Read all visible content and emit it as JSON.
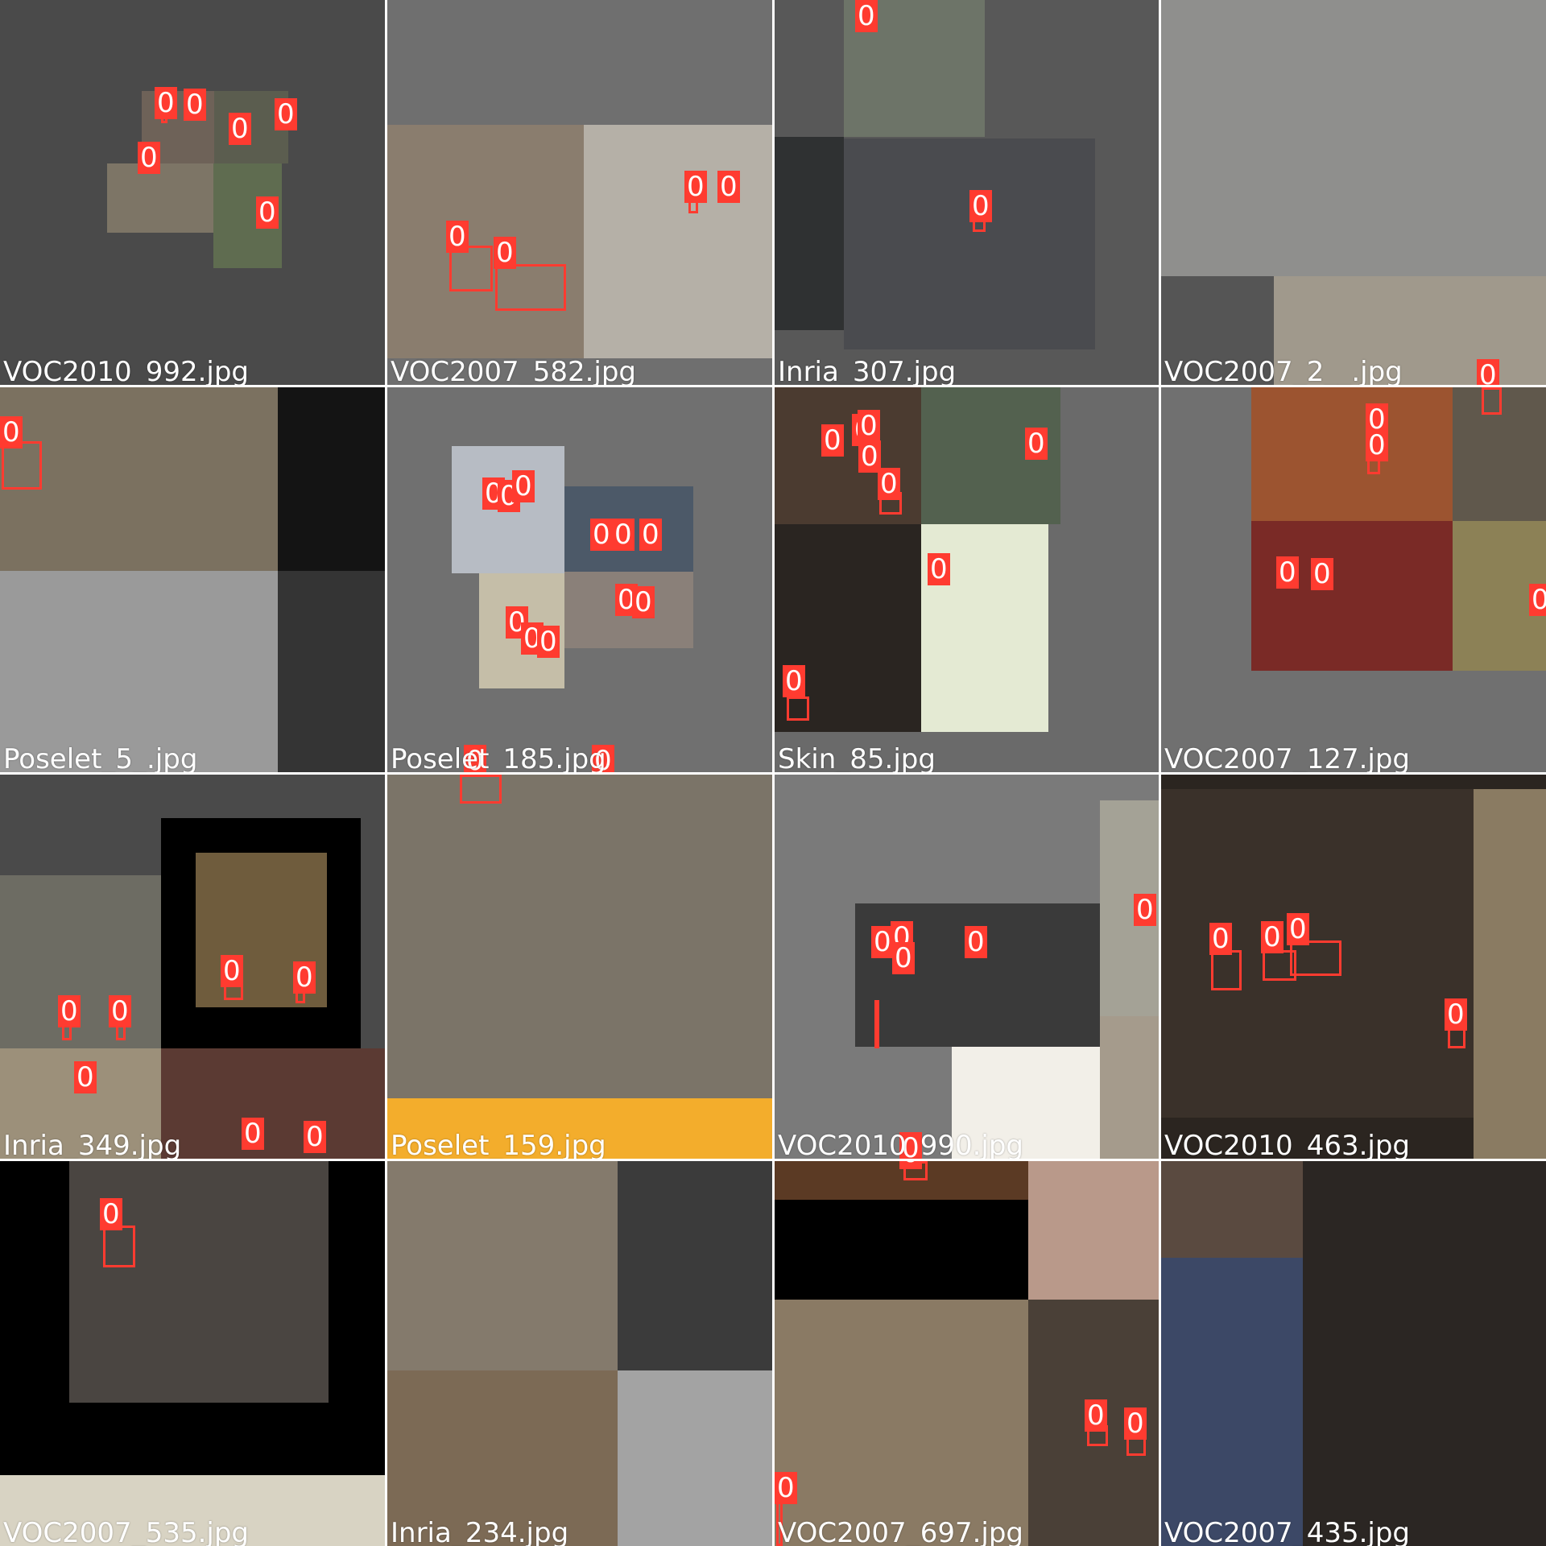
{
  "grid": {
    "tiles": [
      {
        "name": "VOC2010_992.jpg",
        "bg": "#4a4a4a",
        "detections": 6
      },
      {
        "name": "VOC2007_582.jpg",
        "bg": "#6f6f6f",
        "detections": 4
      },
      {
        "name": "Inria_307.jpg",
        "bg": "#585858",
        "detections": 2
      },
      {
        "name": "VOC2007_2__.jpg",
        "bg": "#555555",
        "detections": 1
      },
      {
        "name": "Poselet_5_.jpg",
        "bg": "#2a2a2a",
        "detections": 1
      },
      {
        "name": "Poselet_185.jpg",
        "bg": "#707070",
        "detections": 12
      },
      {
        "name": "Skin_85.jpg",
        "bg": "#6a6a6a",
        "detections": 9
      },
      {
        "name": "VOC2007_127.jpg",
        "bg": "#707070",
        "detections": 6
      },
      {
        "name": "Inria_349.jpg",
        "bg": "#4a4a4a",
        "detections": 7
      },
      {
        "name": "Poselet_159.jpg",
        "bg": "#6b6b6b",
        "detections": 1
      },
      {
        "name": "VOC2010_990.jpg",
        "bg": "#7a7a7a",
        "detections": 7
      },
      {
        "name": "VOC2010_463.jpg",
        "bg": "#2b2520",
        "detections": 4
      },
      {
        "name": "VOC2007_535.jpg",
        "bg": "#000000",
        "detections": 1
      },
      {
        "name": "Inria_234.jpg",
        "bg": "#5d5246",
        "detections": 0
      },
      {
        "name": "VOC2007_697.jpg",
        "bg": "#1a1410",
        "detections": 4
      },
      {
        "name": "VOC2007_435.jpg",
        "bg": "#3a3430",
        "detections": 0
      }
    ],
    "class_label": "0",
    "box_color": "#ff3b30"
  }
}
